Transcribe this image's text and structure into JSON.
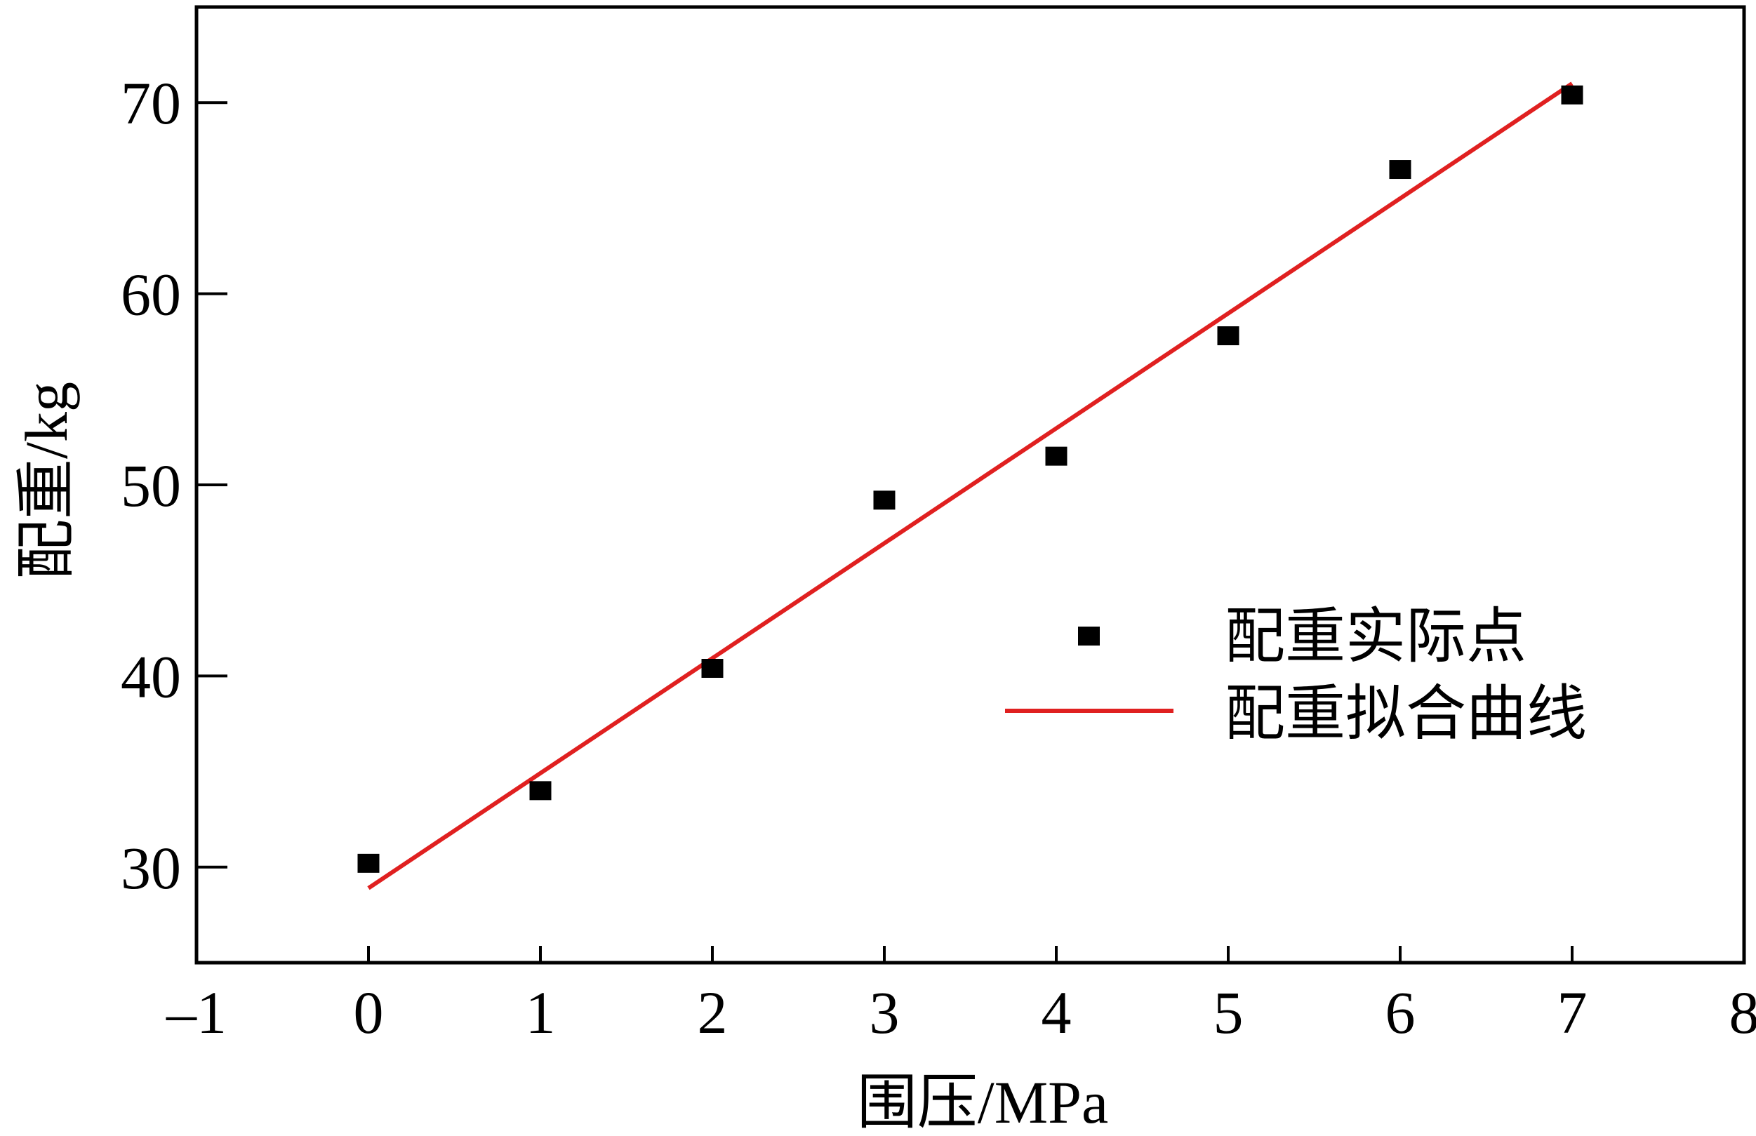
{
  "chart_data": {
    "type": "scatter",
    "title": "",
    "xlabel": "围压/MPa",
    "ylabel": "配重/kg",
    "xlim": [
      -1,
      8
    ],
    "ylim": [
      25,
      75
    ],
    "xticks": [
      -1,
      0,
      1,
      2,
      3,
      4,
      5,
      6,
      7,
      8
    ],
    "yticks": [
      30,
      40,
      50,
      60,
      70
    ],
    "xtick_labels": [
      "–1",
      "0",
      "1",
      "2",
      "3",
      "4",
      "5",
      "6",
      "7",
      "8"
    ],
    "ytick_labels": [
      "30",
      "40",
      "50",
      "60",
      "70"
    ],
    "grid": false,
    "legend_position": "right",
    "series": [
      {
        "name": "配重实际点",
        "kind": "scatter",
        "marker": "square",
        "color": "#000000",
        "x": [
          0,
          1,
          2,
          3,
          4,
          5,
          6,
          7
        ],
        "y": [
          30.2,
          34.0,
          40.4,
          49.2,
          51.5,
          57.8,
          66.5,
          70.4
        ]
      },
      {
        "name": "配重拟合曲线",
        "kind": "line",
        "color": "#e02020",
        "x": [
          0,
          7
        ],
        "y": [
          28.9,
          71.0
        ]
      }
    ]
  }
}
